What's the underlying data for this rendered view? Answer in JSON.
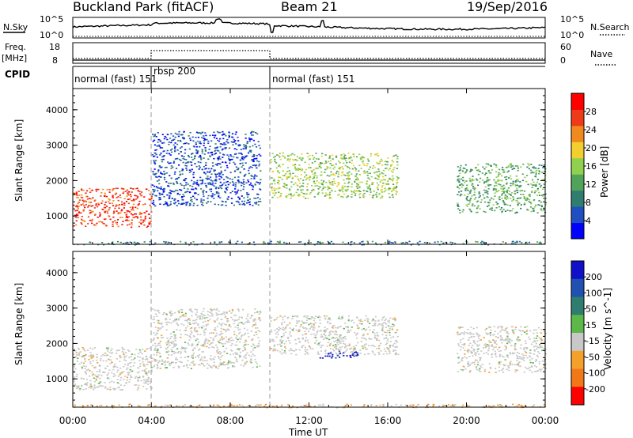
{
  "header": {
    "station": "Buckland Park (fitACF)",
    "beam": "Beam 21",
    "date": "19/Sep/2016"
  },
  "strip_labels": {
    "nsky": "N.Sky",
    "nsearch": "N.Search",
    "freq": "Freq.",
    "freq_unit": "[MHz]",
    "nave": "Nave",
    "cpid": "CPID"
  },
  "strip_ticks": {
    "nsky_top": "10^5",
    "nsky_bottom": "10^0",
    "freq_top": "18",
    "freq_bottom": "8",
    "nave_top": "60",
    "nave_bottom": "0"
  },
  "cpid_segments": [
    {
      "label": "normal (fast) 151",
      "start": 0,
      "end": 4
    },
    {
      "label": "rbsp 200",
      "start": 4,
      "end": 10
    },
    {
      "label": "normal (fast) 151",
      "start": 10,
      "end": 24
    }
  ],
  "chart_data": [
    {
      "type": "heatmap",
      "panel": "power",
      "ylabel": "Slant Range [km]",
      "xlabel": "",
      "y_ticks": [
        "1000",
        "2000",
        "3000",
        "4000"
      ],
      "ylim": [
        200,
        4600
      ],
      "xlim": [
        0,
        24
      ],
      "colorbar": {
        "label": "Power [dB]",
        "ticks": [
          "4",
          "8",
          "12",
          "16",
          "20",
          "24",
          "28"
        ],
        "colors": [
          "#0000ff",
          "#1f4fc0",
          "#2e7d6f",
          "#52a35a",
          "#8fd14f",
          "#f2cf2f",
          "#f08a1f",
          "#ef3a1a",
          "#ff0000"
        ]
      },
      "echo_regions": [
        {
          "t_start": 0.0,
          "t_end": 4.0,
          "range_low": 700,
          "range_high": 1800,
          "level_db": 24
        },
        {
          "t_start": 4.0,
          "t_end": 9.5,
          "range_low": 1300,
          "range_high": 3400,
          "level_db": 6
        },
        {
          "t_start": 10.0,
          "t_end": 16.5,
          "range_low": 1500,
          "range_high": 2800,
          "level_db": 14
        },
        {
          "t_start": 19.5,
          "t_end": 24.0,
          "range_low": 1100,
          "range_high": 2500,
          "level_db": 12
        },
        {
          "t_start": 0.0,
          "t_end": 24.0,
          "range_low": 200,
          "range_high": 300,
          "level_db": 8
        }
      ]
    },
    {
      "type": "heatmap",
      "panel": "velocity",
      "ylabel": "Slant Range [km]",
      "xlabel": "Time UT",
      "x_ticks": [
        "00:00",
        "04:00",
        "08:00",
        "12:00",
        "16:00",
        "20:00",
        "00:00"
      ],
      "y_ticks": [
        "1000",
        "2000",
        "3000",
        "4000"
      ],
      "ylim": [
        200,
        4600
      ],
      "xlim": [
        0,
        24
      ],
      "colorbar": {
        "label": "Velocity [m s^-1]",
        "ticks": [
          "200",
          "100",
          "50",
          "15",
          "-15",
          "-50",
          "-100",
          "-200"
        ],
        "colors": [
          "#1010c8",
          "#2050b0",
          "#2e7d6f",
          "#5db84a",
          "#c8c8c8",
          "#f5a02a",
          "#f07818",
          "#ff0000"
        ]
      },
      "echo_regions": [
        {
          "t_start": 0.0,
          "t_end": 4.0,
          "range_low": 700,
          "range_high": 1900,
          "velocity": 0
        },
        {
          "t_start": 4.0,
          "t_end": 9.5,
          "range_low": 1300,
          "range_high": 3000,
          "velocity": 0
        },
        {
          "t_start": 10.0,
          "t_end": 16.5,
          "range_low": 1700,
          "range_high": 2800,
          "velocity": 0
        },
        {
          "t_start": 12.5,
          "t_end": 14.5,
          "range_low": 1600,
          "range_high": 1800,
          "velocity": 200
        },
        {
          "t_start": 19.5,
          "t_end": 24.0,
          "range_low": 1200,
          "range_high": 2500,
          "velocity": 0
        },
        {
          "t_start": 0.0,
          "t_end": 24.0,
          "range_low": 200,
          "range_high": 300,
          "velocity": -50
        }
      ]
    }
  ]
}
